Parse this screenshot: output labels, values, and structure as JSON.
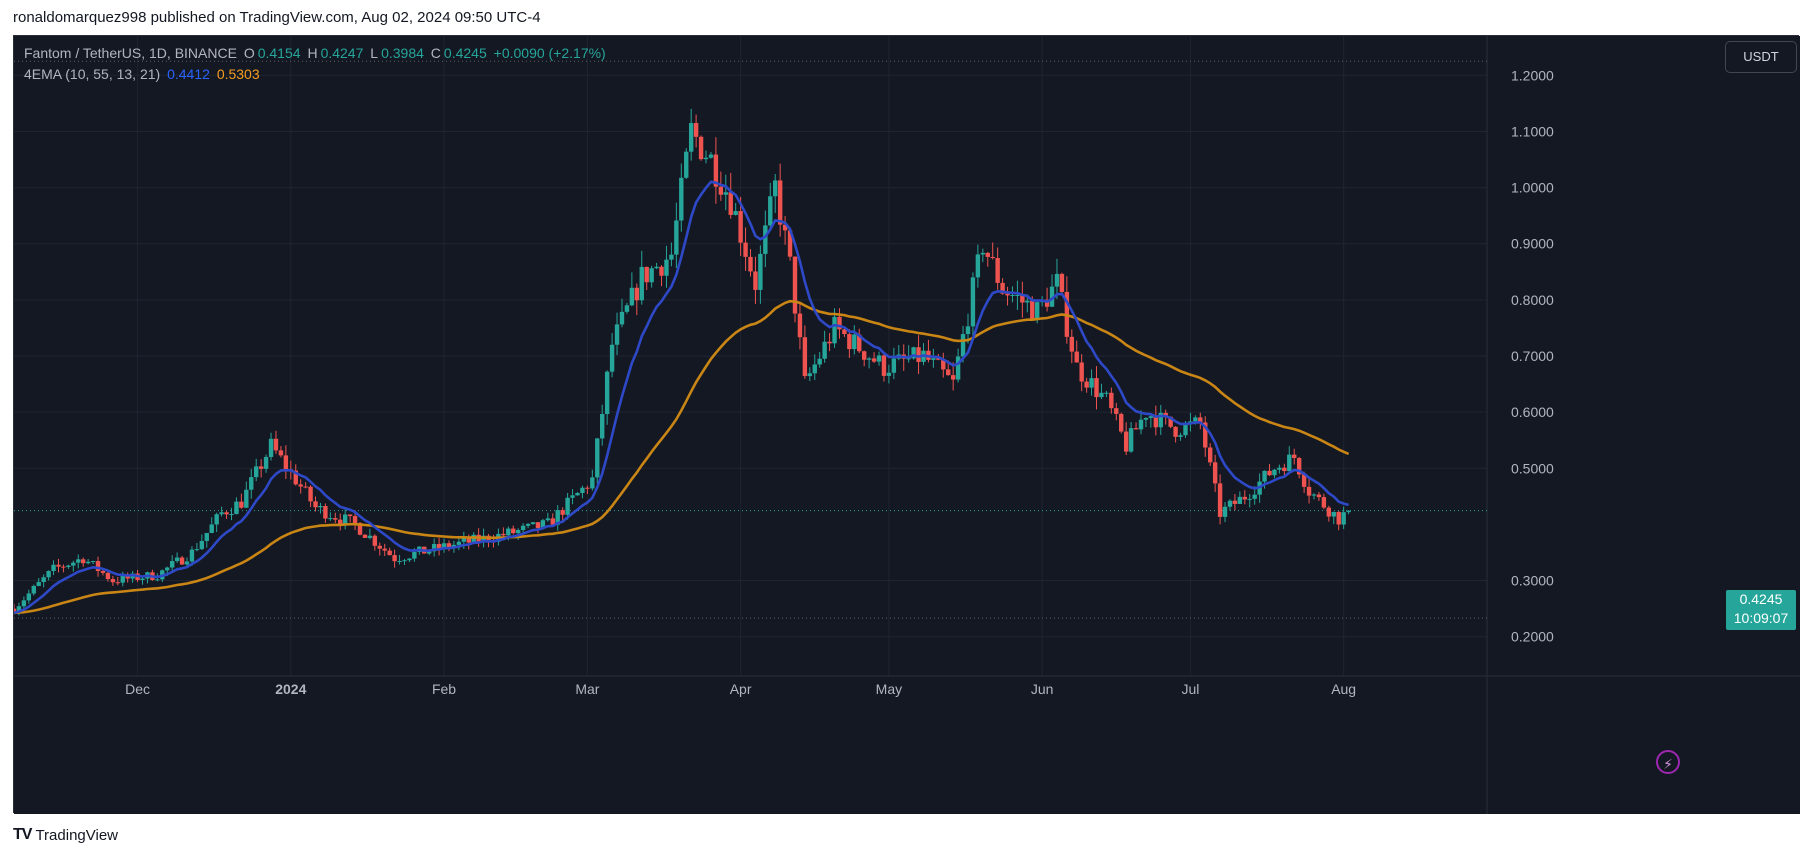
{
  "header": {
    "publisher_line": "ronaldomarquez998 published on TradingView.com, Aug 02, 2024 09:50 UTC-4"
  },
  "legend": {
    "symbol": "Fantom / TetherUS, 1D, BINANCE",
    "open_label": "O",
    "open": "0.4154",
    "high_label": "H",
    "high": "0.4247",
    "low_label": "L",
    "low": "0.3984",
    "close_label": "C",
    "close": "0.4245",
    "change": "+0.0090 (+2.17%)",
    "indicator": "4EMA (10, 55, 13, 21)",
    "ema_fast": "0.4412",
    "ema_slow": "0.5303"
  },
  "currency": "USDT",
  "last_price": {
    "price": "0.4245",
    "countdown": "10:09:07"
  },
  "footer": {
    "brand": "TradingView",
    "logo": "tradingview-logo-icon"
  },
  "colors": {
    "background": "#141823",
    "grid": "#1f2430",
    "up": "#26a69a",
    "down": "#ef5350",
    "ema_fast": "#2e49c8",
    "ema_slow": "#c98615",
    "text": "#b2b5be"
  },
  "chart_data": {
    "type": "candlestick",
    "y_ticks": [
      "1.2000",
      "1.1000",
      "1.0000",
      "0.9000",
      "0.8000",
      "0.7000",
      "0.6000",
      "0.5000",
      "0.3000",
      "0.2000"
    ],
    "x_ticks": [
      {
        "label": "Dec",
        "date": "2023-12-01"
      },
      {
        "label": "2024",
        "date": "2024-01-01"
      },
      {
        "label": "Feb",
        "date": "2024-02-01"
      },
      {
        "label": "Mar",
        "date": "2024-03-01"
      },
      {
        "label": "Apr",
        "date": "2024-04-01"
      },
      {
        "label": "May",
        "date": "2024-05-01"
      },
      {
        "label": "Jun",
        "date": "2024-06-01"
      },
      {
        "label": "Jul",
        "date": "2024-07-01"
      },
      {
        "label": "Aug",
        "date": "2024-08-01"
      }
    ],
    "high_line": 1.225,
    "low_line": 0.233,
    "last_price": 0.4245,
    "ylim": [
      0.13,
      1.27
    ],
    "xlim": [
      "2023-11-06",
      "2024-08-30"
    ],
    "close_waypoints": [
      [
        "2023-11-06",
        0.25
      ],
      [
        "2023-11-14",
        0.32
      ],
      [
        "2023-11-20",
        0.34
      ],
      [
        "2023-11-26",
        0.3
      ],
      [
        "2023-12-05",
        0.31
      ],
      [
        "2023-12-12",
        0.35
      ],
      [
        "2023-12-18",
        0.42
      ],
      [
        "2023-12-22",
        0.44
      ],
      [
        "2023-12-28",
        0.54
      ],
      [
        "2024-01-02",
        0.48
      ],
      [
        "2024-01-06",
        0.43
      ],
      [
        "2024-01-14",
        0.4
      ],
      [
        "2024-01-22",
        0.34
      ],
      [
        "2024-02-01",
        0.36
      ],
      [
        "2024-02-12",
        0.38
      ],
      [
        "2024-02-22",
        0.4
      ],
      [
        "2024-03-02",
        0.48
      ],
      [
        "2024-03-06",
        0.72
      ],
      [
        "2024-03-12",
        0.84
      ],
      [
        "2024-03-18",
        0.88
      ],
      [
        "2024-03-22",
        1.1
      ],
      [
        "2024-03-26",
        1.05
      ],
      [
        "2024-03-30",
        0.98
      ],
      [
        "2024-04-04",
        0.83
      ],
      [
        "2024-04-08",
        1.0
      ],
      [
        "2024-04-11",
        0.86
      ],
      [
        "2024-04-14",
        0.65
      ],
      [
        "2024-04-20",
        0.75
      ],
      [
        "2024-04-30",
        0.68
      ],
      [
        "2024-05-08",
        0.7
      ],
      [
        "2024-05-14",
        0.65
      ],
      [
        "2024-05-20",
        0.9
      ],
      [
        "2024-05-24",
        0.82
      ],
      [
        "2024-05-31",
        0.78
      ],
      [
        "2024-06-04",
        0.83
      ],
      [
        "2024-06-08",
        0.68
      ],
      [
        "2024-06-14",
        0.62
      ],
      [
        "2024-06-18",
        0.54
      ],
      [
        "2024-06-22",
        0.6
      ],
      [
        "2024-06-28",
        0.57
      ],
      [
        "2024-07-03",
        0.58
      ],
      [
        "2024-07-07",
        0.42
      ],
      [
        "2024-07-12",
        0.45
      ],
      [
        "2024-07-18",
        0.5
      ],
      [
        "2024-07-22",
        0.52
      ],
      [
        "2024-07-25",
        0.46
      ],
      [
        "2024-07-31",
        0.41
      ],
      [
        "2024-08-02",
        0.4245
      ]
    ],
    "ema_fast_label": "0.4412",
    "ema_slow_label": "0.5303",
    "ema_fast_end": 0.4412,
    "ema_slow_end": 0.5303
  }
}
